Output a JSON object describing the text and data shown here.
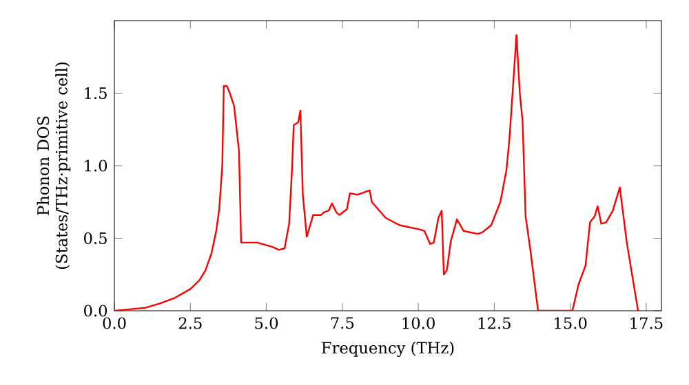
{
  "chart_data": {
    "type": "line",
    "xlabel": "Frequency (THz)",
    "ylabel": "Phonon DOS (States/THz·primitive cell)",
    "x": [
      0,
      0.5,
      1.0,
      1.5,
      2.0,
      2.5,
      2.8,
      3.0,
      3.2,
      3.35,
      3.45,
      3.55,
      3.6,
      3.7,
      3.8,
      3.94,
      4.1,
      4.17,
      4.7,
      5.2,
      5.41,
      5.6,
      5.75,
      5.85,
      5.9,
      6.05,
      6.12,
      6.2,
      6.33,
      6.54,
      6.8,
      6.9,
      7.05,
      7.16,
      7.3,
      7.4,
      7.65,
      7.75,
      8.0,
      8.4,
      8.47,
      8.55,
      8.93,
      9.38,
      10.06,
      10.2,
      10.39,
      10.51,
      10.66,
      10.77,
      10.84,
      10.94,
      11.07,
      11.27,
      11.49,
      11.95,
      12.1,
      12.4,
      12.7,
      12.9,
      13.0,
      13.23,
      13.34,
      13.43,
      13.53,
      13.68,
      13.94,
      15.07,
      15.27,
      15.5,
      15.65,
      15.8,
      15.9,
      16.02,
      16.18,
      16.4,
      16.63,
      16.86,
      17.23
    ],
    "values": [
      0,
      0.01,
      0.02,
      0.05,
      0.09,
      0.15,
      0.21,
      0.28,
      0.4,
      0.55,
      0.7,
      1.0,
      1.55,
      1.55,
      1.5,
      1.41,
      1.1,
      0.47,
      0.47,
      0.44,
      0.42,
      0.43,
      0.6,
      1.0,
      1.28,
      1.3,
      1.38,
      0.8,
      0.51,
      0.66,
      0.66,
      0.68,
      0.69,
      0.74,
      0.68,
      0.66,
      0.7,
      0.81,
      0.8,
      0.83,
      0.75,
      0.73,
      0.64,
      0.59,
      0.56,
      0.55,
      0.46,
      0.47,
      0.64,
      0.69,
      0.25,
      0.28,
      0.48,
      0.63,
      0.55,
      0.53,
      0.54,
      0.59,
      0.75,
      0.97,
      1.19,
      1.9,
      1.5,
      1.31,
      0.65,
      0.43,
      0,
      0,
      0.18,
      0.31,
      0.61,
      0.65,
      0.72,
      0.6,
      0.61,
      0.69,
      0.85,
      0.47,
      0
    ],
    "color": "#ff0000",
    "xlim": [
      0,
      18
    ],
    "ylim": [
      0,
      2.0
    ],
    "xticks": [
      {
        "value": 0,
        "label": "0.0"
      },
      2.5,
      {
        "value": 5,
        "label": "5.0"
      },
      7.5,
      {
        "value": 10,
        "label": "10.0"
      },
      12.5,
      {
        "value": 15,
        "label": "15.0"
      },
      17.5
    ],
    "yticks": [
      {
        "value": 0,
        "label": "0.0"
      },
      0.5,
      {
        "value": 1,
        "label": "1.0"
      },
      1.5
    ],
    "grid": false,
    "marker": "none",
    "line_style": "solid"
  }
}
